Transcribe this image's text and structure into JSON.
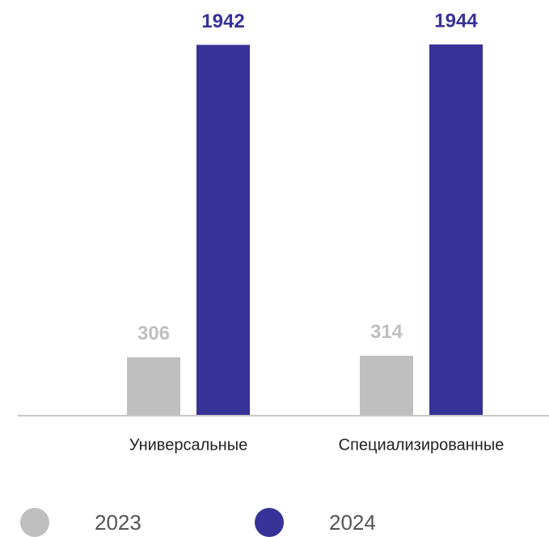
{
  "chart_data": {
    "type": "bar",
    "categories": [
      "Универсальные",
      "Специализированные"
    ],
    "series": [
      {
        "name": "2023",
        "color": "#bfbfbf",
        "values": [
          306,
          314
        ]
      },
      {
        "name": "2024",
        "color": "#363297",
        "values": [
          1942,
          1944
        ]
      }
    ]
  }
}
